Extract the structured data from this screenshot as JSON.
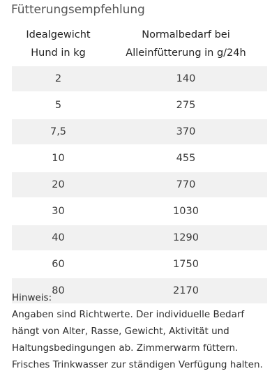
{
  "title": "Fütterungsempfehlung",
  "table": {
    "headers": [
      [
        "Idealgewicht",
        "Hund in kg"
      ],
      [
        "Normalbedarf bei",
        "Alleinfütterung in g/24h"
      ]
    ],
    "rows": [
      [
        "2",
        "140"
      ],
      [
        "5",
        "275"
      ],
      [
        "7,5",
        "370"
      ],
      [
        "10",
        "455"
      ],
      [
        "20",
        "770"
      ],
      [
        "30",
        "1030"
      ],
      [
        "40",
        "1290"
      ],
      [
        "60",
        "1750"
      ],
      [
        "80",
        "2170"
      ]
    ]
  },
  "notes": {
    "label": "Hinweis:",
    "text": "Angaben sind Richtwerte. Der individuelle Bedarf hängt von Alter, Rasse, Gewicht, Aktivität und Haltungsbedingungen ab. Zimmerwarm füttern. Frisches Trinkwasser zur ständigen Verfügung halten."
  },
  "colors": {
    "row_shade": "#f1f1f1",
    "title_gray": "#555555"
  }
}
